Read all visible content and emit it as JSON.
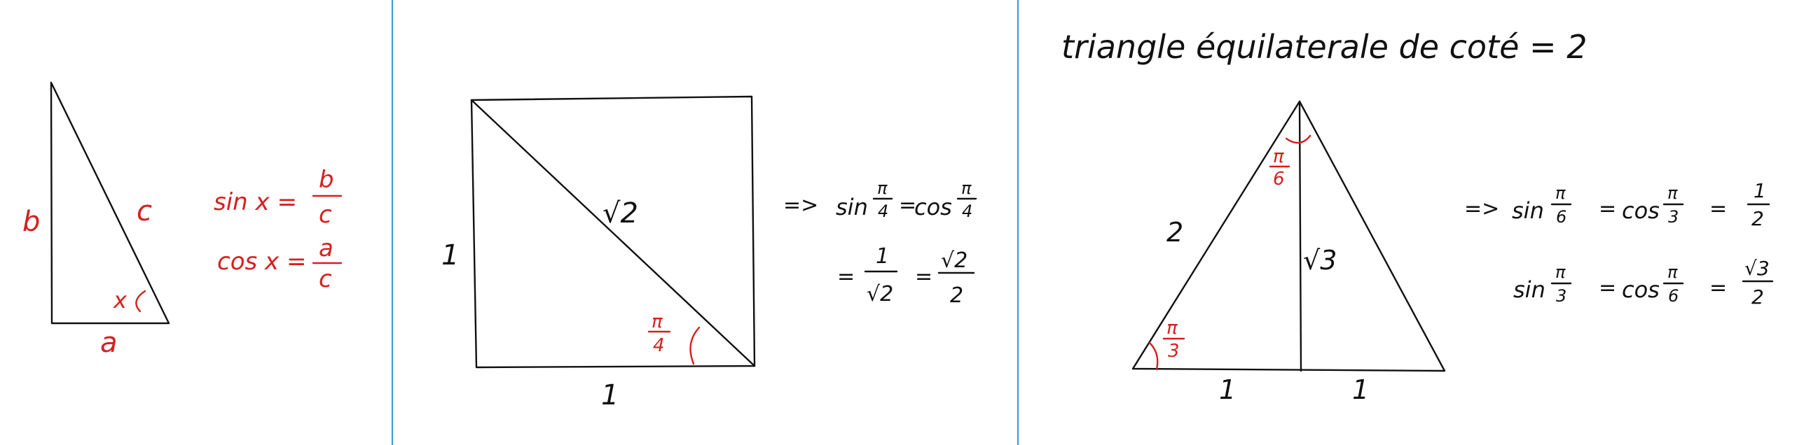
{
  "colors": {
    "ink": "#111111",
    "annotation": "#d42020",
    "divider": "#3e9ae0",
    "background": "#ffffff"
  },
  "panel1": {
    "side_b": "b",
    "side_c": "c",
    "side_a": "a",
    "angle_x": "x",
    "sin_lhs": "sin x =",
    "sin_num": "b",
    "sin_den": "c",
    "cos_lhs": "cos x =",
    "cos_num": "a",
    "cos_den": "c"
  },
  "panel2": {
    "side_left": "1",
    "side_bottom": "1",
    "diagonal": "√2",
    "angle_num": "π",
    "angle_den": "4",
    "implies": "=>",
    "sin_word": "sin",
    "frac_num": "π",
    "frac_den": "4",
    "eq": "=",
    "cos_word": "cos",
    "line2_eq": "=",
    "one": "1",
    "sqrt2": "√2",
    "eq2": "=",
    "sqrt2_num": "√2",
    "two": "2"
  },
  "panel3": {
    "title": "triangle équilaterale de coté = 2",
    "side_left": "2",
    "height": "√3",
    "base_left": "1",
    "base_right": "1",
    "top_angle_num": "π",
    "top_angle_den": "6",
    "base_angle_num": "π",
    "base_angle_den": "3",
    "implies": "=>",
    "sin": "sin",
    "cos": "cos",
    "pi": "π",
    "six": "6",
    "three": "3",
    "eq": "=",
    "one": "1",
    "two": "2",
    "sqrt3": "√3"
  }
}
